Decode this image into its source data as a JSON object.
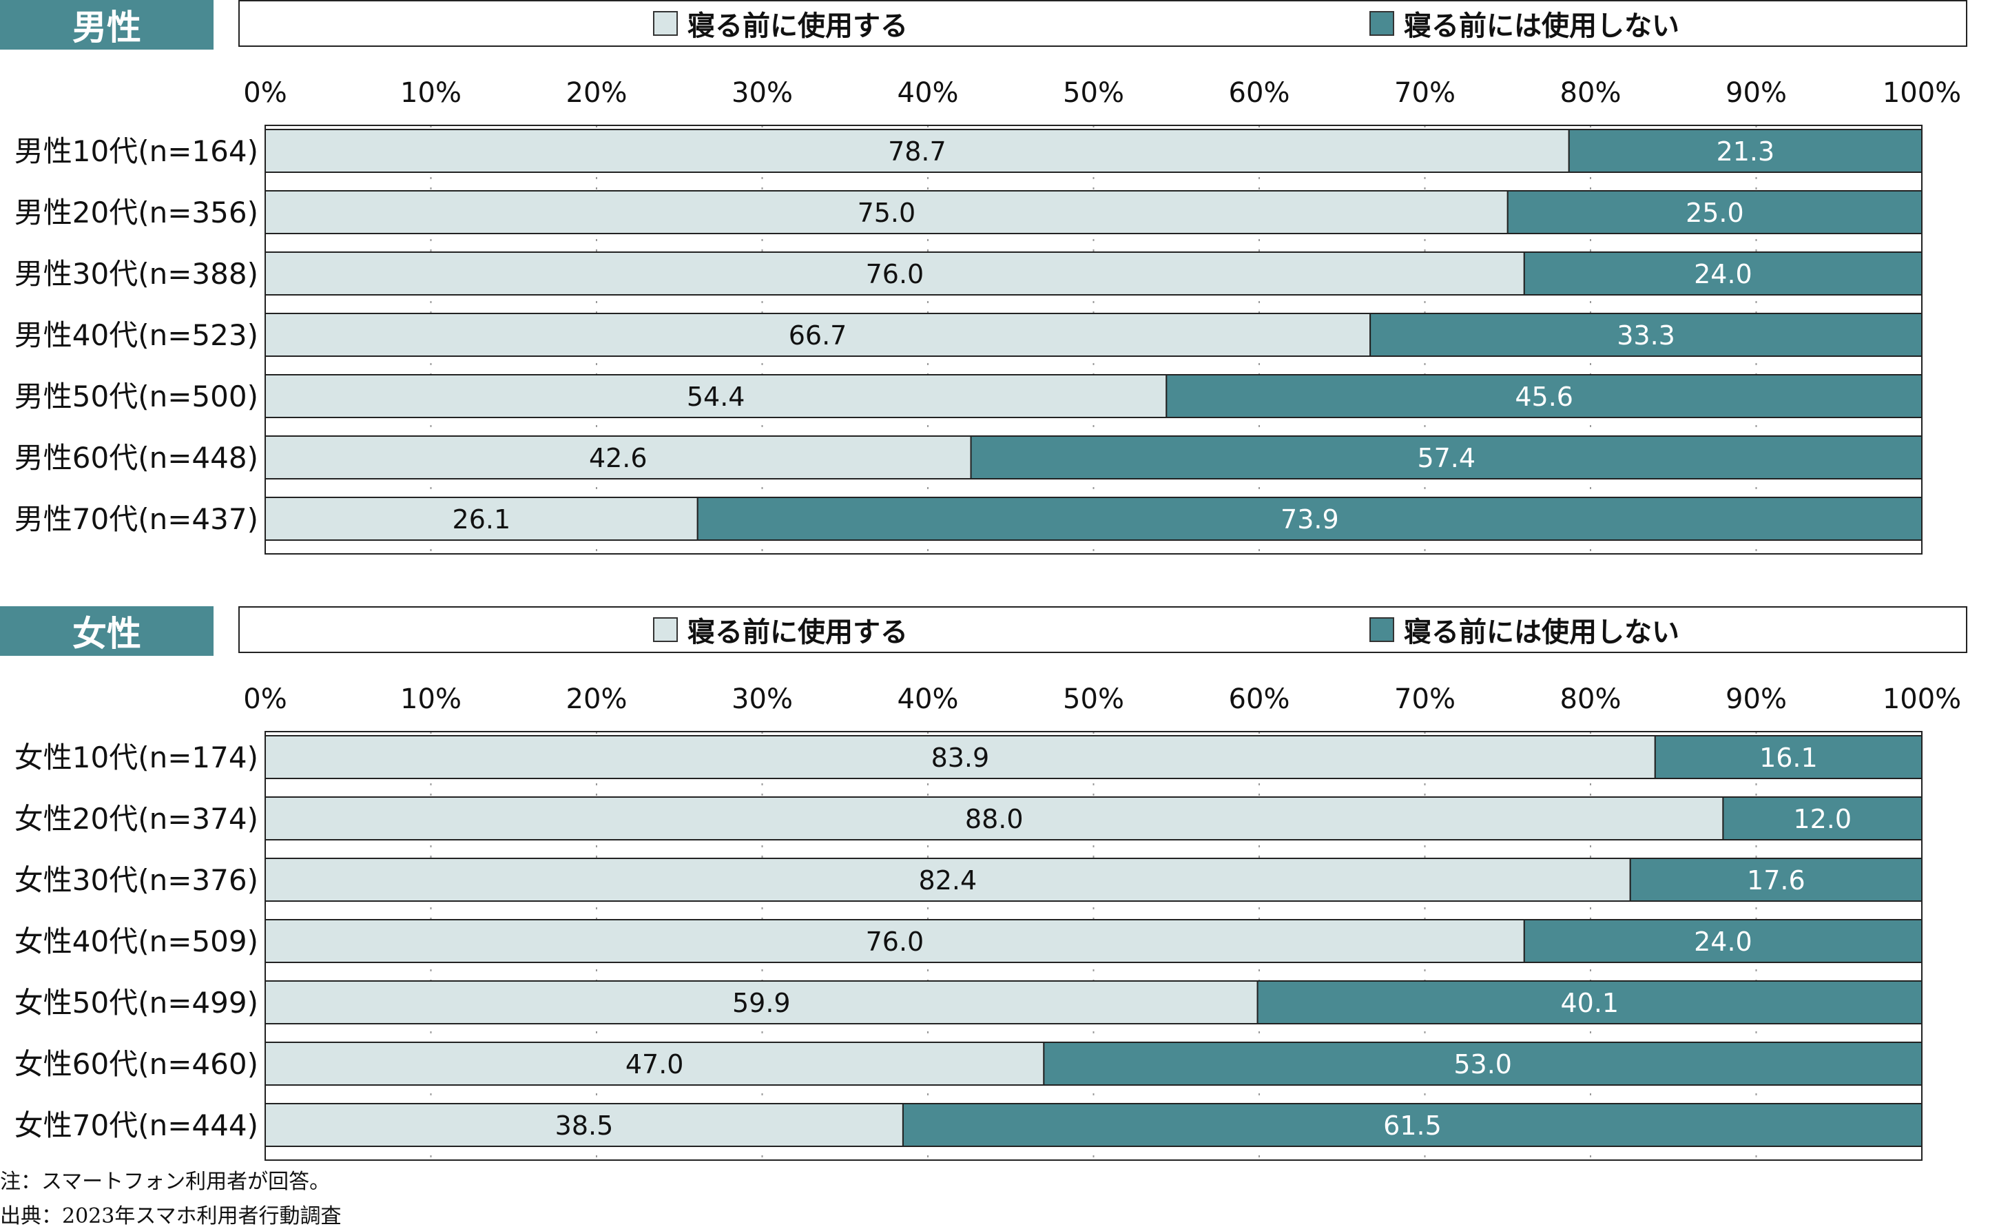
{
  "colors": {
    "use": "#d8e5e6",
    "nouse": "#4a8a92",
    "grid": "#999999",
    "frame": "#222222",
    "title_bg": "#4a8a92"
  },
  "chart_data": [
    {
      "type": "bar",
      "orientation": "horizontal",
      "stacked": true,
      "title": "男性",
      "xlim": [
        0,
        100
      ],
      "x_ticks": [
        "0%",
        "10%",
        "20%",
        "30%",
        "40%",
        "50%",
        "60%",
        "70%",
        "80%",
        "90%",
        "100%"
      ],
      "legend": [
        "寝る前に使用する",
        "寝る前には使用しない"
      ],
      "legend_position": "top",
      "categories": [
        "男性10代(n=164)",
        "男性20代(n=356)",
        "男性30代(n=388)",
        "男性40代(n=523)",
        "男性50代(n=500)",
        "男性60代(n=448)",
        "男性70代(n=437)"
      ],
      "series": [
        {
          "name": "寝る前に使用する",
          "values": [
            78.7,
            75.0,
            76.0,
            66.7,
            54.4,
            42.6,
            26.1
          ],
          "labels": [
            "78.7",
            "75.0",
            "76.0",
            "66.7",
            "54.4",
            "42.6",
            "26.1"
          ]
        },
        {
          "name": "寝る前には使用しない",
          "values": [
            21.3,
            25.0,
            24.0,
            33.3,
            45.6,
            57.4,
            73.9
          ],
          "labels": [
            "21.3",
            "25.0",
            "24.0",
            "33.3",
            "45.6",
            "57.4",
            "73.9"
          ]
        }
      ]
    },
    {
      "type": "bar",
      "orientation": "horizontal",
      "stacked": true,
      "title": "女性",
      "xlim": [
        0,
        100
      ],
      "x_ticks": [
        "0%",
        "10%",
        "20%",
        "30%",
        "40%",
        "50%",
        "60%",
        "70%",
        "80%",
        "90%",
        "100%"
      ],
      "legend": [
        "寝る前に使用する",
        "寝る前には使用しない"
      ],
      "legend_position": "top",
      "categories": [
        "女性10代(n=174)",
        "女性20代(n=374)",
        "女性30代(n=376)",
        "女性40代(n=509)",
        "女性50代(n=499)",
        "女性60代(n=460)",
        "女性70代(n=444)"
      ],
      "series": [
        {
          "name": "寝る前に使用する",
          "values": [
            83.9,
            88.0,
            82.4,
            76.0,
            59.9,
            47.0,
            38.5
          ],
          "labels": [
            "83.9",
            "88.0",
            "82.4",
            "76.0",
            "59.9",
            "47.0",
            "38.5"
          ]
        },
        {
          "name": "寝る前には使用しない",
          "values": [
            16.1,
            12.0,
            17.6,
            24.0,
            40.1,
            53.0,
            61.5
          ],
          "labels": [
            "16.1",
            "12.0",
            "17.6",
            "24.0",
            "40.1",
            "53.0",
            "61.5"
          ]
        }
      ]
    }
  ],
  "footnotes": {
    "note": "注：スマートフォン利用者が回答。",
    "source": "出典：2023年スマホ利用者行動調査"
  }
}
